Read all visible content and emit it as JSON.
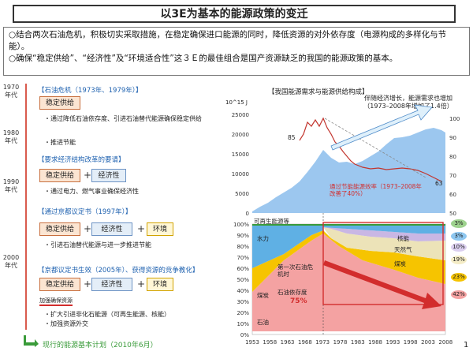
{
  "title": "以3E为基本的能源政策的变迁",
  "intro": {
    "line1": "○结合两次石油危机，积极切实采取措施，在稳定确保进口能源的同时，降低资源的对外依存度（电源构成的多样化与节能）。",
    "line2": "○确保“稳定供给”、“经济性”及“环境适合性”这３Ｅ的最佳组合是国产资源缺乏的我国的能源政策的基本。"
  },
  "years": [
    "1970年代",
    "1980年代",
    "1990年代",
    "2000年代"
  ],
  "sections": [
    {
      "heading": "【石油危机（1973年、1979年）】",
      "boxes": [
        "稳定供给"
      ],
      "bullets": [
        "・通过降低石油依存度、引进石油替代能源确保稳定供给",
        "・推进节能"
      ]
    },
    {
      "heading": "【要求经济结构改革的要请】",
      "boxes": [
        "稳定供给",
        "经济性"
      ],
      "bullets": [
        "・通过电力、燃气事业确保经济性"
      ]
    },
    {
      "heading": "【通过京都议定书（1997年）】",
      "boxes": [
        "稳定供给",
        "经济性",
        "环境"
      ],
      "bullets": [
        "・引进石油替代能源与进一步推进节能"
      ]
    },
    {
      "heading": "【京都议定书生效（2005年）、获得资源的竞争教化】",
      "boxes": [
        "稳定供给",
        "经济性",
        "环境"
      ],
      "stamp": "加强确保资源",
      "bullets": [
        "・扩大引进非化石能源（可再生能源、核能）",
        "・加强资源外交"
      ]
    }
  ],
  "footer": "现行的能源基本计划（2010年6月）",
  "page_number": "1",
  "colors": {
    "accent_red": "#d22d2d",
    "blue": "#1f62b0",
    "green": "#3a9b3a"
  },
  "chart": {
    "heading": "【我国能源需求与能源供给构成】",
    "unit": "10^15 J",
    "top_annotation": "伴随经济增长，能源需求也增加（1973–2008年增加了1.4倍）",
    "efficiency_note": "通过节能能源效率（1973–2008年改善了40%）",
    "label_85": "85",
    "label_63": "63",
    "left_ticks": [
      "0",
      "5000",
      "10000",
      "15000",
      "20000",
      "25000"
    ],
    "right_ticks": [
      "50",
      "60",
      "70",
      "80",
      "90",
      "100"
    ],
    "pct_ticks": [
      "0%",
      "10%",
      "20%",
      "30%",
      "40%",
      "50%",
      "60%",
      "70%",
      "80%",
      "90%",
      "100%"
    ],
    "x_ticks": [
      "1953",
      "1958",
      "1963",
      "1968",
      "1973",
      "1978",
      "1983",
      "1988",
      "1993",
      "1998",
      "2003",
      "2008"
    ],
    "labels": {
      "renewable": "可再生能源等",
      "hydro": "水力",
      "nuclear": "核能",
      "gas": "天然气",
      "coal_r": "煤炭",
      "crisis": "第一次石油危机时",
      "oil_dep": "石油依存度",
      "coal_l": "煤炭",
      "oil": "石油",
      "oil_pct": "75%"
    },
    "right_pcts": [
      "3%",
      "3%",
      "10%",
      "19%",
      "23%",
      "42%"
    ]
  },
  "chart_data": {
    "type": "area",
    "title": "我国能源需求与能源供给构成",
    "x": [
      1953,
      1958,
      1963,
      1968,
      1973,
      1978,
      1983,
      1988,
      1993,
      1998,
      2003,
      2008
    ],
    "series": [
      {
        "name": "能源需求 (10^15 J)",
        "values": [
          2000,
          3000,
          6000,
          12000,
          16500,
          16000,
          16000,
          18500,
          21000,
          22000,
          23000,
          22500
        ]
      },
      {
        "name": "能源效率指数",
        "values": [
          92,
          95,
          98,
          97,
          100,
          90,
          80,
          75,
          72,
          72,
          70,
          63
        ]
      }
    ],
    "ylim": [
      0,
      25000
    ],
    "y2lim": [
      50,
      100
    ]
  }
}
